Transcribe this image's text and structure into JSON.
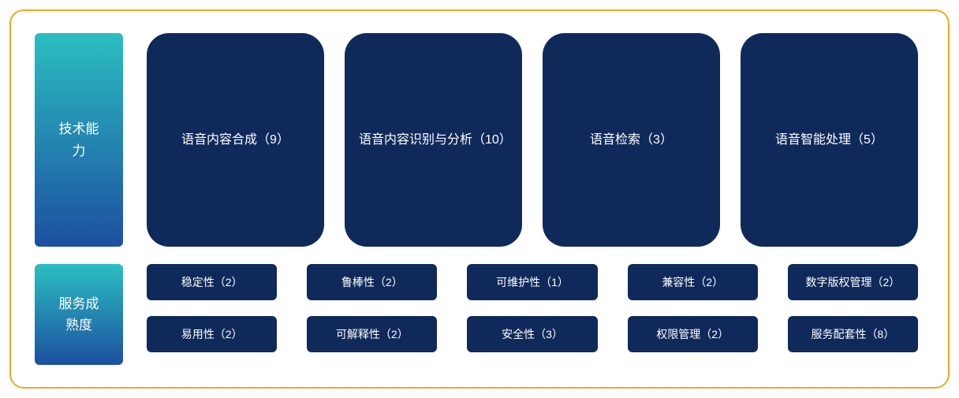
{
  "frame": {
    "border_color": "#f5a623",
    "border_radius": 18,
    "background": "#ffffff"
  },
  "colors": {
    "dark_card": "#0f2a5a",
    "gradient_top": "#2bbec1",
    "gradient_bottom": "#1c4fa0",
    "text": "#ffffff"
  },
  "row1": {
    "side_label": "技术能力",
    "cards": [
      {
        "label": "语音内容合成（9）"
      },
      {
        "label": "语音内容识别与分析（10）"
      },
      {
        "label": "语音检索（3）"
      },
      {
        "label": "语音智能处理（5）"
      }
    ]
  },
  "row2": {
    "side_label": "服务成熟度",
    "rows": [
      [
        {
          "label": "稳定性（2）"
        },
        {
          "label": "鲁棒性（2）"
        },
        {
          "label": "可维护性（1）"
        },
        {
          "label": "兼容性（2）"
        },
        {
          "label": "数字版权管理（2）"
        }
      ],
      [
        {
          "label": "易用性（2）"
        },
        {
          "label": "可解释性（2）"
        },
        {
          "label": "安全性（3）"
        },
        {
          "label": "权限管理（2）"
        },
        {
          "label": "服务配套性（8）"
        }
      ]
    ]
  }
}
